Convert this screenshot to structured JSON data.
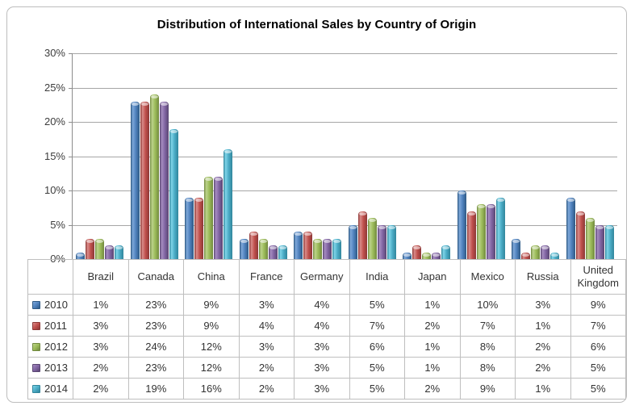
{
  "chart_data": {
    "type": "bar",
    "title": "Distribution of International Sales by Country of Origin",
    "categories": [
      "Brazil",
      "Canada",
      "China",
      "France",
      "Germany",
      "India",
      "Japan",
      "Mexico",
      "Russia",
      "United Kingdom"
    ],
    "series": [
      {
        "name": "2010",
        "color": "#4F81BD",
        "color_light": "#7DA7D9",
        "color_dark": "#2E5984",
        "values": [
          1,
          23,
          9,
          3,
          4,
          5,
          1,
          10,
          3,
          9
        ]
      },
      {
        "name": "2011",
        "color": "#C0504D",
        "color_light": "#D98B89",
        "color_dark": "#8C3836",
        "values": [
          3,
          23,
          9,
          4,
          4,
          7,
          2,
          7,
          1,
          7
        ]
      },
      {
        "name": "2012",
        "color": "#9BBB59",
        "color_light": "#BCD38A",
        "color_dark": "#71893F",
        "values": [
          3,
          24,
          12,
          3,
          3,
          6,
          1,
          8,
          2,
          6
        ]
      },
      {
        "name": "2013",
        "color": "#8064A2",
        "color_light": "#A58BC0",
        "color_dark": "#5A4672",
        "values": [
          2,
          23,
          12,
          2,
          3,
          5,
          1,
          8,
          2,
          5
        ]
      },
      {
        "name": "2014",
        "color": "#4BACC6",
        "color_light": "#7FD4E8",
        "color_dark": "#31859B",
        "values": [
          2,
          19,
          16,
          2,
          3,
          5,
          2,
          9,
          1,
          5
        ]
      }
    ],
    "value_format": "percent",
    "y_ticks": [
      "30%",
      "25%",
      "20%",
      "15%",
      "10%",
      "5%",
      "0%"
    ],
    "ylim": [
      0,
      30
    ],
    "y_major_unit": 5,
    "grid": true,
    "legend_position": "data-table-left",
    "colors": {
      "frame_border": "#BDBDBD",
      "gridline": "#A6A6A6",
      "axis_line": "#808080",
      "table_border": "#BFBFBF",
      "title_text": "#000000",
      "label_text": "#333333",
      "background": "#FFFFFF"
    }
  }
}
